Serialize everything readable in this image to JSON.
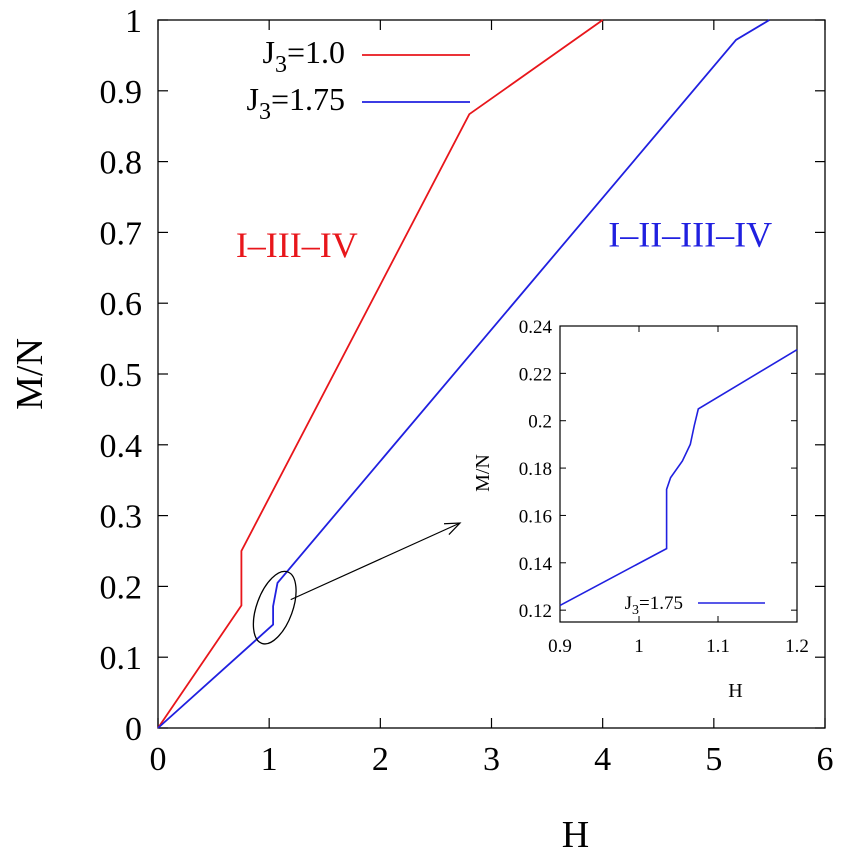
{
  "chart_data": [
    {
      "type": "line",
      "xlabel": "H",
      "ylabel": "M/N",
      "xlim": [
        0,
        6
      ],
      "ylim": [
        0,
        1
      ],
      "xticks": [
        "0",
        "1",
        "2",
        "3",
        "4",
        "5",
        "6"
      ],
      "yticks": [
        "0",
        "0.1",
        "0.2",
        "0.3",
        "0.4",
        "0.5",
        "0.6",
        "0.7",
        "0.8",
        "0.9",
        "1"
      ],
      "grid": false,
      "legend_position": "top-left",
      "series": [
        {
          "name": "J3=1.0",
          "name_base": "J",
          "name_sub": "3",
          "name_rest": "=1.0",
          "color": "#e8161b",
          "x": [
            0,
            0.75,
            0.75,
            2.8,
            4.0
          ],
          "y": [
            0,
            0.173,
            0.25,
            0.867,
            1.0
          ]
        },
        {
          "name": "J3=1.75",
          "name_base": "J",
          "name_sub": "3",
          "name_rest": "=1.75",
          "color": "#2020e0",
          "x": [
            0,
            1.035,
            1.035,
            1.075,
            5.2,
            5.5
          ],
          "y": [
            0,
            0.146,
            0.172,
            0.205,
            0.972,
            1.0
          ]
        }
      ],
      "annotations": [
        {
          "text": "I–III–IV",
          "color": "#e8161b",
          "anchor_x": 0.7,
          "anchor_y": 0.665
        },
        {
          "text": "I–II–III–IV",
          "color": "#2020e0",
          "anchor_x": 4.05,
          "anchor_y": 0.68
        }
      ],
      "highlight": {
        "shape": "ellipse",
        "center_x": 1.05,
        "center_y": 0.17,
        "arrow_to": "inset"
      }
    },
    {
      "type": "line",
      "role": "inset",
      "xlabel": "H",
      "ylabel": "M/N",
      "xlim": [
        0.9,
        1.2
      ],
      "ylim": [
        0.115,
        0.24
      ],
      "xticks": [
        "0.9",
        "1",
        "1.1",
        "1.2"
      ],
      "yticks": [
        "0.12",
        "0.14",
        "0.16",
        "0.18",
        "0.2",
        "0.22",
        "0.24"
      ],
      "grid": false,
      "legend_position": "bottom-right",
      "series": [
        {
          "name": "J3=1.75",
          "name_base": "J",
          "name_sub": "3",
          "name_rest": "=1.75",
          "color": "#2020e0",
          "x": [
            0.9,
            1.035,
            1.035,
            1.04,
            1.055,
            1.065,
            1.07,
            1.075,
            1.2
          ],
          "y": [
            0.122,
            0.146,
            0.171,
            0.176,
            0.183,
            0.19,
            0.198,
            0.205,
            0.23
          ]
        }
      ]
    }
  ]
}
